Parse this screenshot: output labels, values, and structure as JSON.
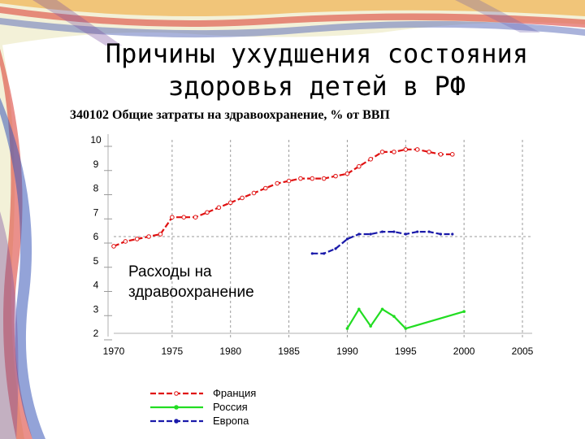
{
  "slide": {
    "title_line1": "Причины ухудшения состояния",
    "title_line2": "здоровья детей в РФ"
  },
  "chart_data": {
    "type": "line",
    "title": "340102 Общие затраты на здравоохранение, % от ВВП",
    "annotation": "Расходы на здравоохранение",
    "xlim": [
      1970,
      2005
    ],
    "ylim": [
      2,
      10
    ],
    "x_ticks": [
      1970,
      1975,
      1980,
      1985,
      1990,
      1995,
      2000,
      2005
    ],
    "y_ticks": [
      2,
      3,
      4,
      5,
      6,
      7,
      8,
      9,
      10
    ],
    "grid": true,
    "legend_position": "bottom",
    "series": [
      {
        "name": "Франция",
        "color": "#e01010",
        "x": [
          1970,
          1971,
          1972,
          1973,
          1974,
          1975,
          1976,
          1977,
          1978,
          1979,
          1980,
          1981,
          1982,
          1983,
          1984,
          1985,
          1986,
          1987,
          1988,
          1989,
          1990,
          1991,
          1992,
          1993,
          1994,
          1995,
          1996,
          1997,
          1998,
          1999
        ],
        "y": [
          5.6,
          5.8,
          5.9,
          6.0,
          6.1,
          6.8,
          6.8,
          6.8,
          7.0,
          7.2,
          7.4,
          7.6,
          7.8,
          8.0,
          8.2,
          8.3,
          8.4,
          8.4,
          8.4,
          8.5,
          8.6,
          8.9,
          9.2,
          9.5,
          9.5,
          9.6,
          9.6,
          9.5,
          9.4,
          9.4
        ]
      },
      {
        "name": "Россия",
        "color": "#22dd22",
        "x": [
          1990,
          1991,
          1992,
          1993,
          1994,
          1995,
          2000
        ],
        "y": [
          2.2,
          3.0,
          2.3,
          3.0,
          2.7,
          2.2,
          2.9
        ]
      },
      {
        "name": "Европа",
        "color": "#1a1aaa",
        "x": [
          1987,
          1988,
          1989,
          1990,
          1991,
          1992,
          1993,
          1994,
          1995,
          1996,
          1997,
          1998,
          1999
        ],
        "y": [
          5.3,
          5.3,
          5.5,
          5.9,
          6.1,
          6.1,
          6.2,
          6.2,
          6.1,
          6.2,
          6.2,
          6.1,
          6.1
        ]
      }
    ]
  }
}
